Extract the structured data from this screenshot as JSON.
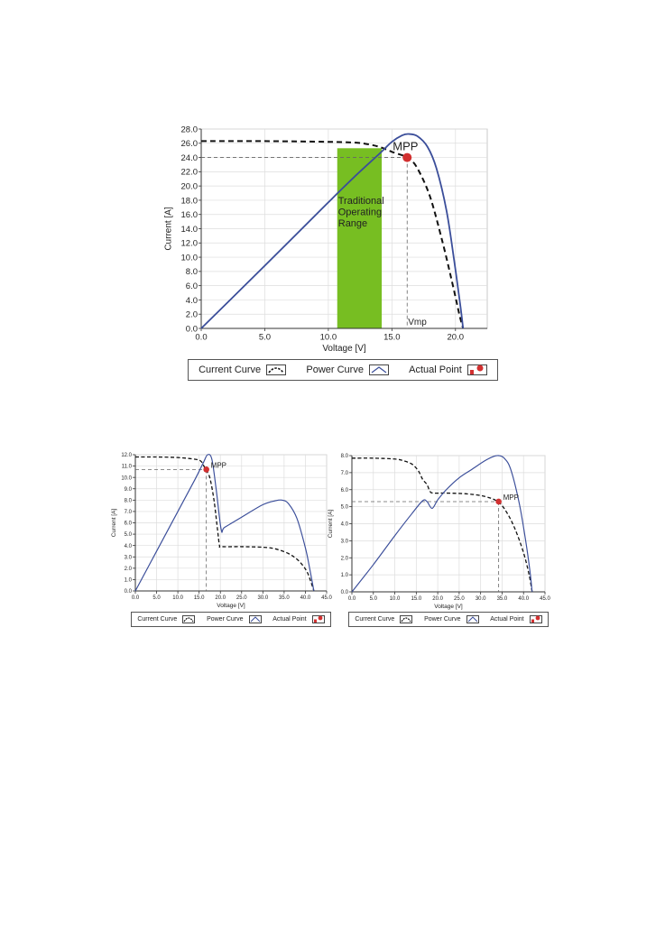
{
  "colors": {
    "current": "#111111",
    "power": "#3b4e9a",
    "actual": "#d23030",
    "range": "#77be22",
    "grid": "#dddddd",
    "guide": "#666666"
  },
  "legend": {
    "current": "Current Curve",
    "power": "Power Curve",
    "actual": "Actual Point"
  },
  "chart_data": [
    {
      "type": "line",
      "xlabel": "Voltage [V]",
      "ylabel": "Current [A]",
      "xlim": [
        0,
        22.5
      ],
      "ylim": [
        0,
        28
      ],
      "xticks": [
        "0.0",
        "5.0",
        "10.0",
        "15.0",
        "20.0"
      ],
      "xtick_values": [
        0,
        5,
        10,
        15,
        20
      ],
      "yticks": [
        "0.0",
        "2.0",
        "4.0",
        "6.0",
        "8.0",
        "10.0",
        "12.0",
        "14.0",
        "16.0",
        "18.0",
        "20.0",
        "22.0",
        "24.0",
        "26.0",
        "28.0"
      ],
      "ytick_values": [
        0,
        2,
        4,
        6,
        8,
        10,
        12,
        14,
        16,
        18,
        20,
        22,
        24,
        26,
        28
      ],
      "grid": true,
      "series": [
        {
          "name": "Current Curve",
          "style": "dashed",
          "x": [
            0,
            5,
            10,
            12,
            13,
            14,
            15,
            16,
            16.3,
            17,
            18,
            19,
            19.8,
            20.3,
            20.6
          ],
          "y": [
            26.3,
            26.3,
            26.2,
            26.1,
            25.9,
            25.5,
            24.8,
            24.2,
            24.0,
            22.5,
            18.5,
            12,
            6,
            2,
            0
          ]
        },
        {
          "name": "Power Curve",
          "style": "solid",
          "x": [
            0,
            5,
            10,
            12,
            14,
            15,
            15.8,
            16.3,
            17,
            17.8,
            18.5,
            19.3,
            19.9,
            20.4,
            20.6
          ],
          "y": [
            0,
            8.8,
            17.7,
            21.2,
            24.5,
            26.2,
            27.1,
            27.3,
            27.0,
            25.5,
            22.5,
            16.5,
            9.5,
            3,
            0
          ]
        }
      ],
      "mpp": {
        "x": 16.2,
        "y": 24.0,
        "label": "MPP"
      },
      "vmp_label": "Vmp",
      "range": {
        "x0": 10.7,
        "x1": 14.2,
        "y0": 0,
        "y1": 25.3,
        "label": [
          "Traditional",
          "Operating",
          "Range"
        ]
      }
    },
    {
      "type": "line",
      "xlabel": "Voltage [V]",
      "ylabel": "Current [A]",
      "xlim": [
        0,
        45
      ],
      "ylim": [
        0,
        12
      ],
      "xticks": [
        "0.0",
        "5.0",
        "10.0",
        "15.0",
        "20.0",
        "25.0",
        "30.0",
        "35.0",
        "40.0",
        "45.0"
      ],
      "xtick_values": [
        0,
        5,
        10,
        15,
        20,
        25,
        30,
        35,
        40,
        45
      ],
      "yticks": [
        "0.0",
        "1.0",
        "2.0",
        "3.0",
        "4.0",
        "5.0",
        "6.0",
        "7.0",
        "8.0",
        "9.0",
        "10.0",
        "11.0",
        "12.0"
      ],
      "ytick_values": [
        0,
        1,
        2,
        3,
        4,
        5,
        6,
        7,
        8,
        9,
        10,
        11,
        12
      ],
      "grid": true,
      "series": [
        {
          "name": "Current Curve",
          "style": "dashed",
          "x": [
            0,
            5,
            10,
            14,
            15.5,
            16.5,
            17.5,
            18.5,
            19.3,
            19.8,
            20.3,
            25,
            30,
            33,
            36,
            38,
            39.5,
            40.5,
            41.3,
            42
          ],
          "y": [
            11.8,
            11.8,
            11.75,
            11.6,
            11.4,
            10.7,
            10.0,
            8.0,
            5.5,
            4.0,
            3.9,
            3.9,
            3.85,
            3.7,
            3.3,
            2.8,
            2.2,
            1.6,
            0.8,
            0
          ]
        },
        {
          "name": "Power Curve",
          "style": "solid",
          "x": [
            0,
            5,
            10,
            14,
            16,
            17,
            18,
            19,
            20.2,
            21,
            25,
            30,
            33,
            34.5,
            36,
            38,
            40,
            41,
            42
          ],
          "y": [
            0,
            3.5,
            7.0,
            9.8,
            11.3,
            12.0,
            11.6,
            9.0,
            5.4,
            5.6,
            6.5,
            7.6,
            7.95,
            8.0,
            7.7,
            6.4,
            3.8,
            2.0,
            0
          ]
        }
      ],
      "mpp": {
        "x": 16.7,
        "y": 10.7,
        "label": "MPP"
      }
    },
    {
      "type": "line",
      "xlabel": "Voltage [V]",
      "ylabel": "Current [A]",
      "xlim": [
        0,
        45
      ],
      "ylim": [
        0,
        8
      ],
      "xticks": [
        "0.0",
        "5.0",
        "10.0",
        "15.0",
        "20.0",
        "25.0",
        "30.0",
        "35.0",
        "40.0",
        "45.0"
      ],
      "xtick_values": [
        0,
        5,
        10,
        15,
        20,
        25,
        30,
        35,
        40,
        45
      ],
      "yticks": [
        "0.0",
        "1.0",
        "2.0",
        "3.0",
        "4.0",
        "5.0",
        "6.0",
        "7.0",
        "8.0"
      ],
      "ytick_values": [
        0,
        1,
        2,
        3,
        4,
        5,
        6,
        7,
        8
      ],
      "grid": true,
      "series": [
        {
          "name": "Current Curve",
          "style": "dashed",
          "x": [
            0,
            5,
            10,
            12,
            14,
            15.5,
            16.5,
            17.5,
            18.2,
            19,
            22,
            27,
            31,
            34,
            36,
            38,
            40,
            41.3,
            42
          ],
          "y": [
            7.85,
            7.85,
            7.8,
            7.7,
            7.5,
            7.1,
            6.6,
            6.3,
            5.9,
            5.8,
            5.8,
            5.75,
            5.6,
            5.3,
            4.7,
            3.7,
            2.3,
            1.0,
            0
          ]
        },
        {
          "name": "Power Curve",
          "style": "solid",
          "x": [
            0,
            5,
            10,
            14,
            16.5,
            17.5,
            18.7,
            20,
            22,
            25,
            28,
            31,
            33,
            34.2,
            35.5,
            37,
            39,
            40.5,
            41.5,
            42
          ],
          "y": [
            0,
            1.6,
            3.3,
            4.6,
            5.35,
            5.3,
            4.9,
            5.4,
            6.0,
            6.7,
            7.2,
            7.7,
            7.95,
            8.0,
            7.85,
            7.2,
            5.2,
            3.0,
            1.2,
            0
          ]
        }
      ],
      "mpp": {
        "x": 34.2,
        "y": 5.3,
        "label": "MPP"
      }
    }
  ]
}
